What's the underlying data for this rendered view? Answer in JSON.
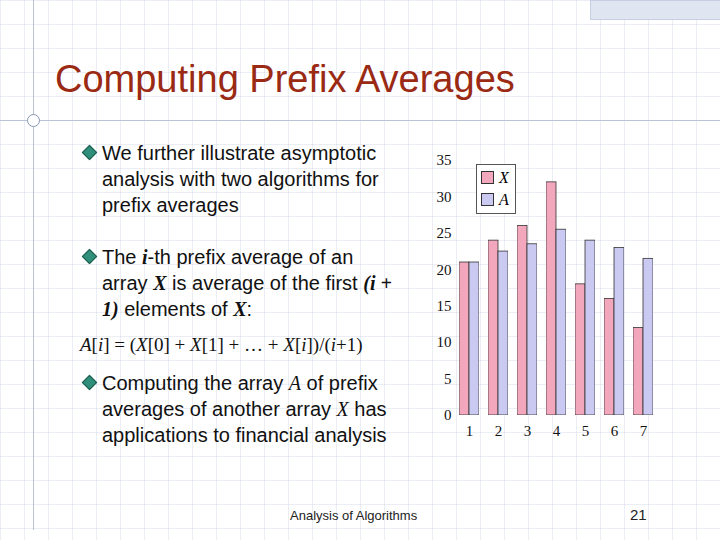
{
  "slide": {
    "title": "Computing Prefix Averages",
    "items": [
      {
        "kind": "bullet",
        "parts": [
          {
            "t": "We further illustrate asymptotic analysis with two algorithms for prefix averages"
          }
        ]
      },
      {
        "kind": "bullet",
        "parts": [
          {
            "t": "The "
          },
          {
            "t": "i",
            "i": true,
            "b": true
          },
          {
            "t": "-th prefix average of an array "
          },
          {
            "t": "X",
            "i": true,
            "b": true
          },
          {
            "t": " is average of the first "
          },
          {
            "t": "(i + 1)",
            "b": true,
            "i": true
          },
          {
            "t": " elements of "
          },
          {
            "t": "X",
            "i": true,
            "b": true
          },
          {
            "t": ":"
          }
        ]
      },
      {
        "kind": "formula",
        "parts": [
          {
            "t": "A",
            "i": true
          },
          {
            "t": "["
          },
          {
            "t": "i",
            "i": true
          },
          {
            "t": "] = ("
          },
          {
            "t": "X",
            "i": true
          },
          {
            "t": "[0] + "
          },
          {
            "t": "X",
            "i": true
          },
          {
            "t": "[1] + … + "
          },
          {
            "t": "X",
            "i": true
          },
          {
            "t": "["
          },
          {
            "t": "i",
            "i": true
          },
          {
            "t": "])/("
          },
          {
            "t": "i",
            "i": true
          },
          {
            "t": "+1)"
          }
        ]
      },
      {
        "kind": "bullet",
        "parts": [
          {
            "t": "Computing the array "
          },
          {
            "t": "A",
            "i": true
          },
          {
            "t": " of prefix averages of another array "
          },
          {
            "t": "X",
            "i": true
          },
          {
            "t": " has applications to financial analysis"
          }
        ]
      }
    ],
    "footer": "Analysis of Algorithms",
    "page": "21"
  },
  "chart_data": {
    "type": "bar",
    "categories": [
      "1",
      "2",
      "3",
      "4",
      "5",
      "6",
      "7"
    ],
    "series": [
      {
        "name": "X",
        "color": "#f2a7bd",
        "values": [
          21,
          24,
          26,
          32,
          18,
          16,
          12
        ]
      },
      {
        "name": "A",
        "color": "#c9c9f2",
        "values": [
          21,
          22.5,
          23.5,
          25.5,
          24,
          23,
          21.5
        ]
      }
    ],
    "ylim": [
      0,
      35
    ],
    "yticks": [
      0,
      5,
      10,
      15,
      20,
      25,
      30,
      35
    ],
    "grid": false,
    "legend": "top-left"
  }
}
